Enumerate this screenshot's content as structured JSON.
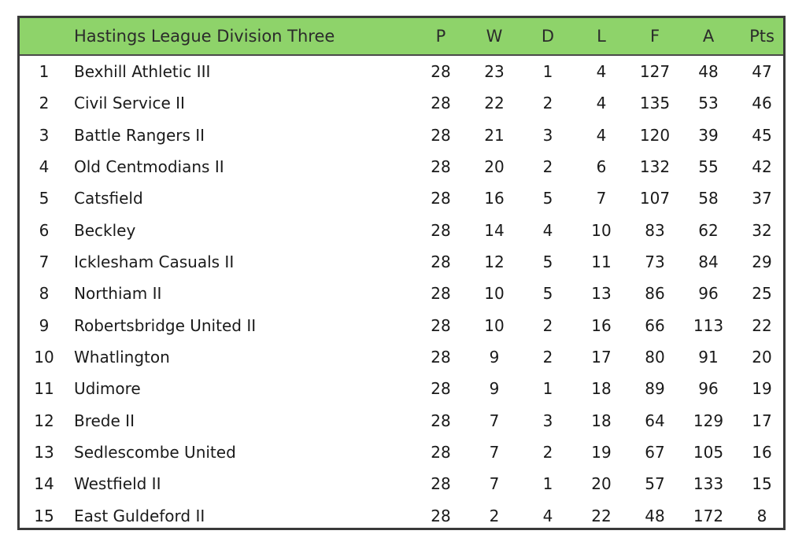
{
  "table": {
    "title": "Hastings League Division Three",
    "columns": [
      "P",
      "W",
      "D",
      "L",
      "F",
      "A",
      "Pts"
    ],
    "rows": [
      {
        "pos": "1",
        "team": "Bexhill Athletic III",
        "p": "28",
        "w": "23",
        "d": "1",
        "l": "4",
        "f": "127",
        "a": "48",
        "pts": "47"
      },
      {
        "pos": "2",
        "team": "Civil Service II",
        "p": "28",
        "w": "22",
        "d": "2",
        "l": "4",
        "f": "135",
        "a": "53",
        "pts": "46"
      },
      {
        "pos": "3",
        "team": "Battle Rangers II",
        "p": "28",
        "w": "21",
        "d": "3",
        "l": "4",
        "f": "120",
        "a": "39",
        "pts": "45"
      },
      {
        "pos": "4",
        "team": "Old Centmodians II",
        "p": "28",
        "w": "20",
        "d": "2",
        "l": "6",
        "f": "132",
        "a": "55",
        "pts": "42"
      },
      {
        "pos": "5",
        "team": "Catsfield",
        "p": "28",
        "w": "16",
        "d": "5",
        "l": "7",
        "f": "107",
        "a": "58",
        "pts": "37"
      },
      {
        "pos": "6",
        "team": "Beckley",
        "p": "28",
        "w": "14",
        "d": "4",
        "l": "10",
        "f": "83",
        "a": "62",
        "pts": "32"
      },
      {
        "pos": "7",
        "team": "Icklesham Casuals II",
        "p": "28",
        "w": "12",
        "d": "5",
        "l": "11",
        "f": "73",
        "a": "84",
        "pts": "29"
      },
      {
        "pos": "8",
        "team": "Northiam II",
        "p": "28",
        "w": "10",
        "d": "5",
        "l": "13",
        "f": "86",
        "a": "96",
        "pts": "25"
      },
      {
        "pos": "9",
        "team": "Robertsbridge United II",
        "p": "28",
        "w": "10",
        "d": "2",
        "l": "16",
        "f": "66",
        "a": "113",
        "pts": "22"
      },
      {
        "pos": "10",
        "team": "Whatlington",
        "p": "28",
        "w": "9",
        "d": "2",
        "l": "17",
        "f": "80",
        "a": "91",
        "pts": "20"
      },
      {
        "pos": "11",
        "team": "Udimore",
        "p": "28",
        "w": "9",
        "d": "1",
        "l": "18",
        "f": "89",
        "a": "96",
        "pts": "19"
      },
      {
        "pos": "12",
        "team": "Brede II",
        "p": "28",
        "w": "7",
        "d": "3",
        "l": "18",
        "f": "64",
        "a": "129",
        "pts": "17"
      },
      {
        "pos": "13",
        "team": "Sedlescombe United",
        "p": "28",
        "w": "7",
        "d": "2",
        "l": "19",
        "f": "67",
        "a": "105",
        "pts": "16"
      },
      {
        "pos": "14",
        "team": "Westfield II",
        "p": "28",
        "w": "7",
        "d": "1",
        "l": "20",
        "f": "57",
        "a": "133",
        "pts": "15"
      },
      {
        "pos": "15",
        "team": "East Guldeford II",
        "p": "28",
        "w": "2",
        "d": "4",
        "l": "22",
        "f": "48",
        "a": "172",
        "pts": "8"
      }
    ]
  },
  "colors": {
    "header_bg": "#8ed36a",
    "border": "#3a3a3a"
  }
}
